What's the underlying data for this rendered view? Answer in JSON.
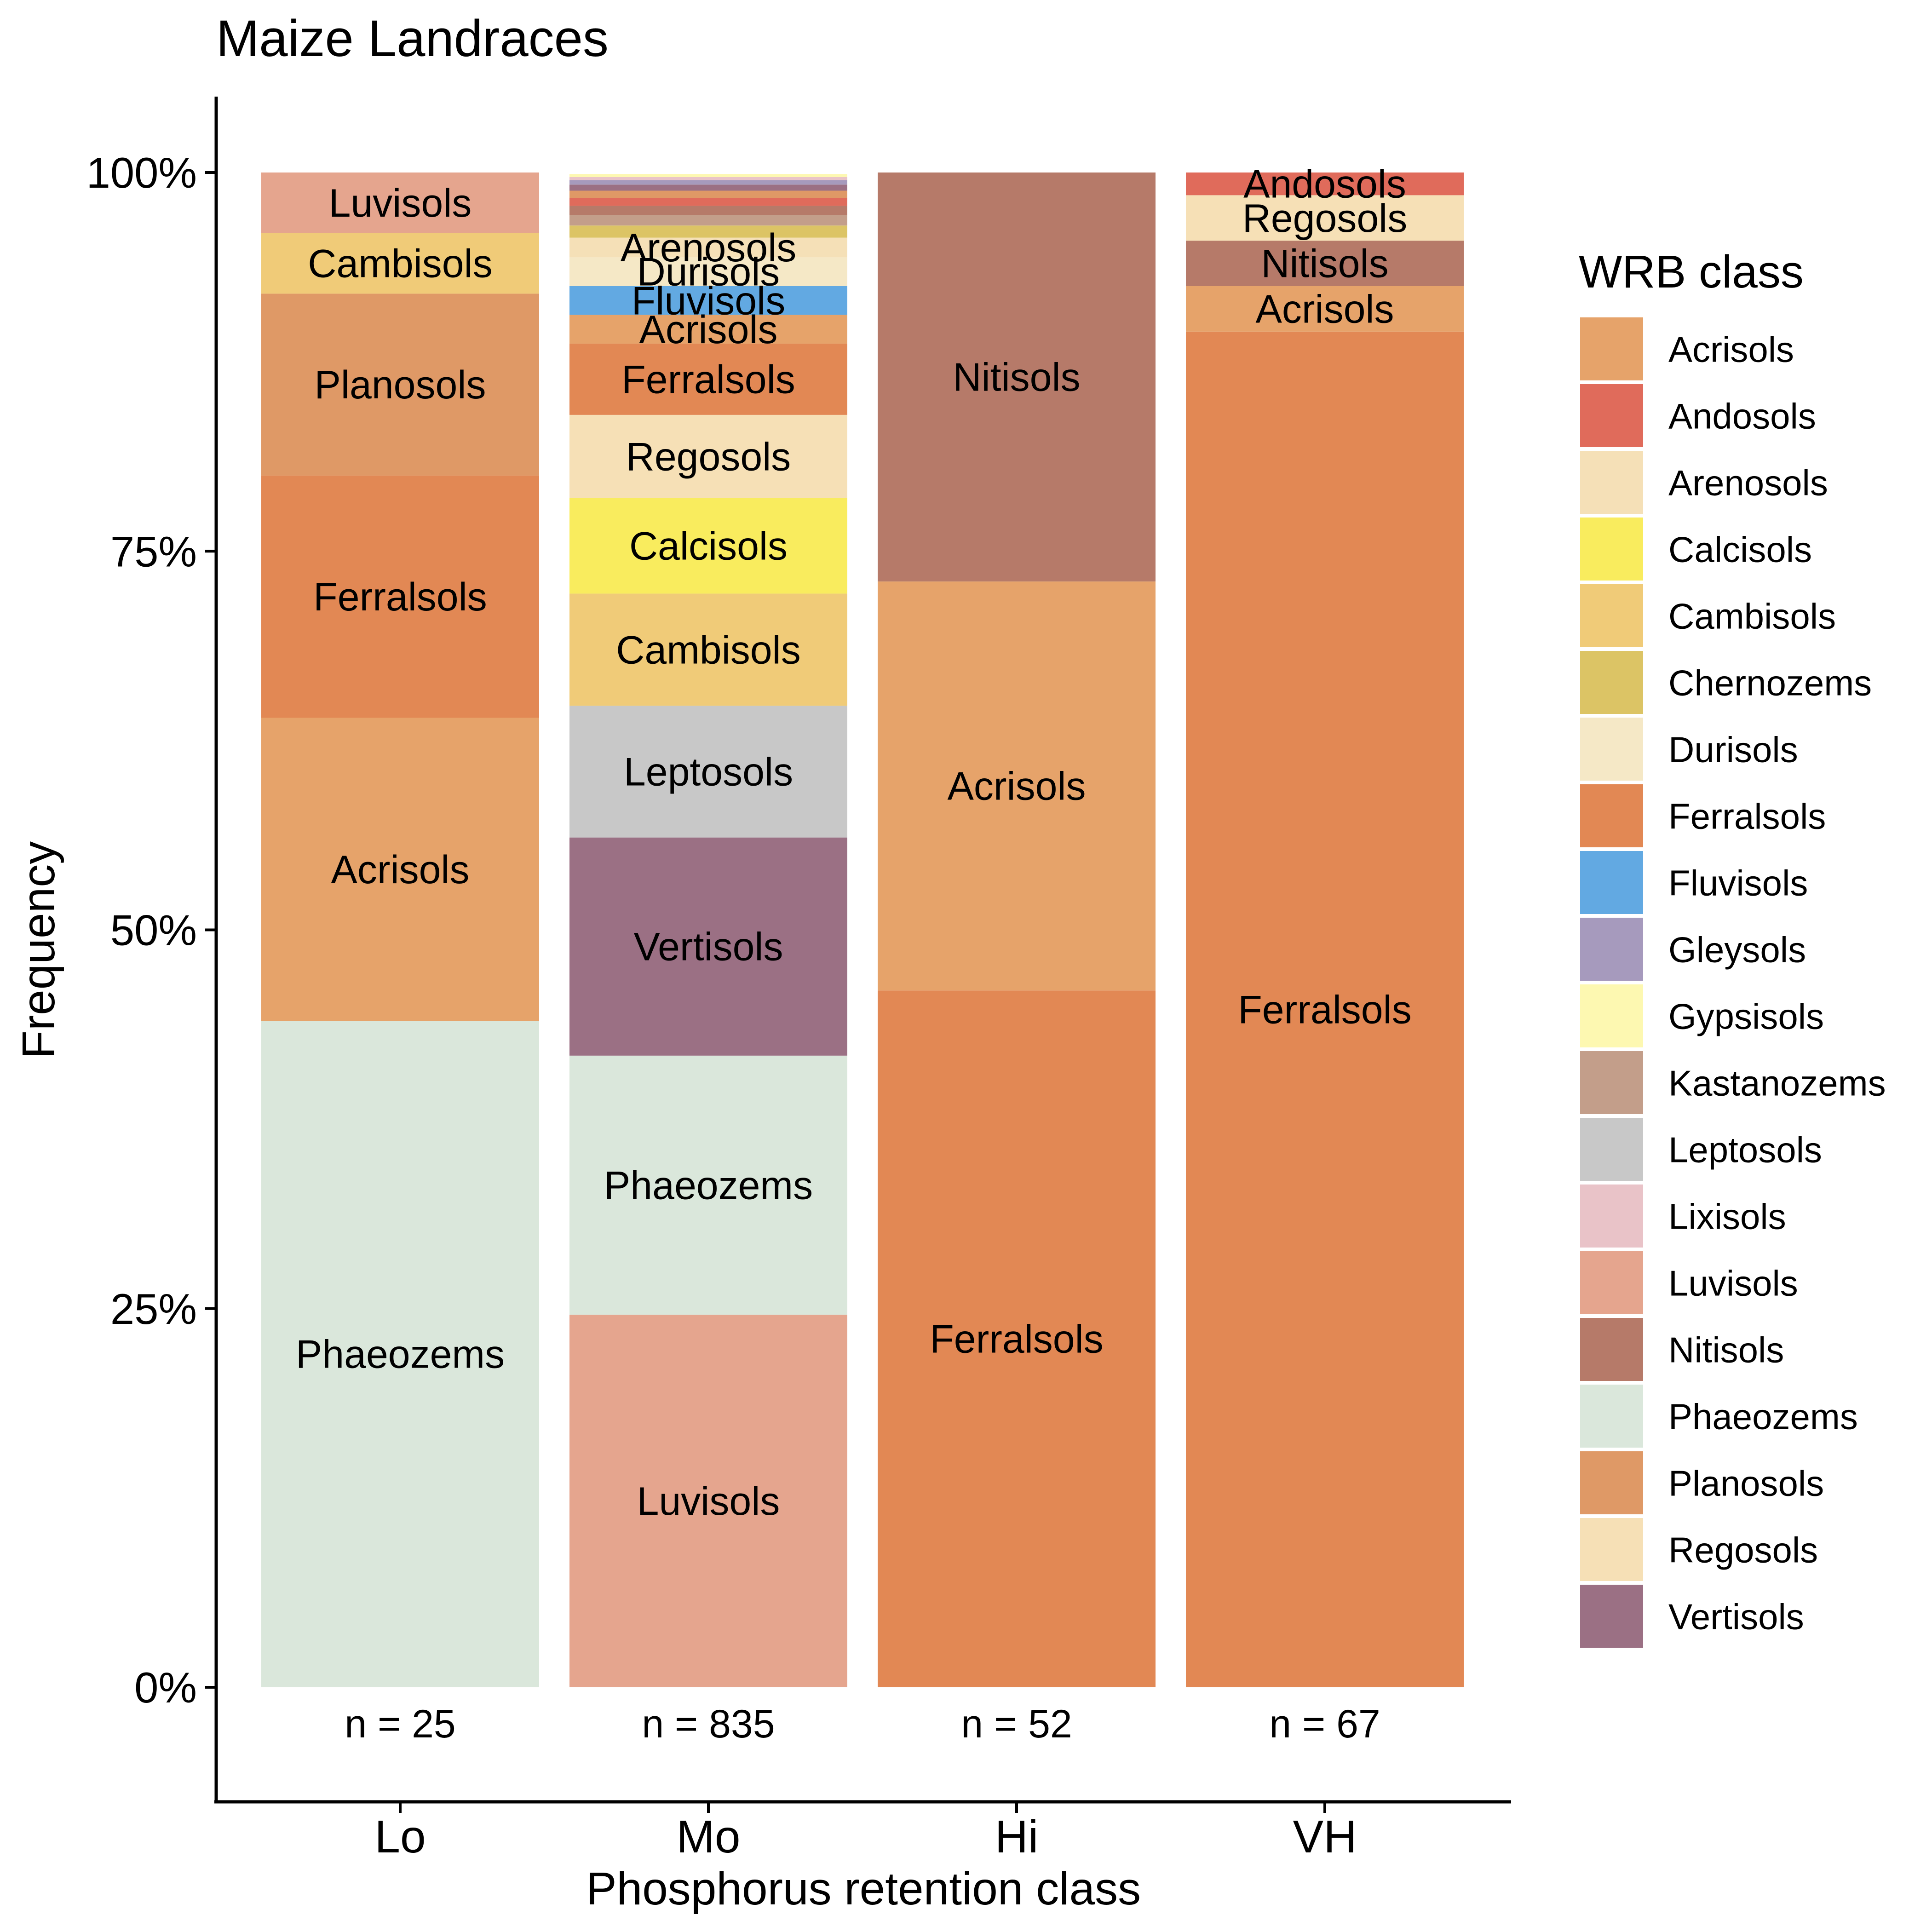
{
  "chart_data": {
    "type": "bar",
    "stacked": true,
    "normalized": true,
    "title": "Maize Landraces",
    "xlabel": "Phosphorus retention class",
    "ylabel": "Frequency",
    "ylim": [
      -0.07,
      1.05
    ],
    "yticks": [
      0,
      0.25,
      0.5,
      0.75,
      1.0
    ],
    "ytick_labels": [
      "0%",
      "25%",
      "50%",
      "75%",
      "100%"
    ],
    "grid": false,
    "legend_title": "WRB class",
    "legend_position": "right",
    "categories": [
      "Lo",
      "Mo",
      "Hi",
      "VH"
    ],
    "counts": [
      "n = 25",
      "n = 835",
      "n = 52",
      "n = 67"
    ],
    "classes": [
      {
        "name": "Acrisols",
        "color": "#E6A36A"
      },
      {
        "name": "Andosols",
        "color": "#E06B5B"
      },
      {
        "name": "Arenosols",
        "color": "#F5E0B7"
      },
      {
        "name": "Calcisols",
        "color": "#F9EC5E"
      },
      {
        "name": "Cambisols",
        "color": "#F0CB78"
      },
      {
        "name": "Chernozems",
        "color": "#DCC465"
      },
      {
        "name": "Durisols",
        "color": "#F5E8C6"
      },
      {
        "name": "Ferralsols",
        "color": "#E28854"
      },
      {
        "name": "Fluvisols",
        "color": "#62A9E2"
      },
      {
        "name": "Gleysols",
        "color": "#A69ABD"
      },
      {
        "name": "Gypsisols",
        "color": "#FDF8B1"
      },
      {
        "name": "Kastanozems",
        "color": "#C39E8A"
      },
      {
        "name": "Leptosols",
        "color": "#C8C8C8"
      },
      {
        "name": "Lixisols",
        "color": "#E9C3C8"
      },
      {
        "name": "Luvisols",
        "color": "#E5A58E"
      },
      {
        "name": "Nitisols",
        "color": "#B67A69"
      },
      {
        "name": "Phaeozems",
        "color": "#DAE7DB"
      },
      {
        "name": "Planosols",
        "color": "#DF9966"
      },
      {
        "name": "Regosols",
        "color": "#F6E0B6"
      },
      {
        "name": "Vertisols",
        "color": "#9B7084"
      }
    ],
    "stacks": [
      {
        "category": "Lo",
        "segments": [
          {
            "class": "Phaeozems",
            "value": 0.44,
            "label": "Phaeozems"
          },
          {
            "class": "Acrisols",
            "value": 0.2,
            "label": "Acrisols"
          },
          {
            "class": "Ferralsols",
            "value": 0.16,
            "label": "Ferralsols"
          },
          {
            "class": "Planosols",
            "value": 0.12,
            "label": "Planosols"
          },
          {
            "class": "Cambisols",
            "value": 0.04,
            "label": "Cambisols"
          },
          {
            "class": "Luvisols",
            "value": 0.04,
            "label": "Luvisols"
          }
        ]
      },
      {
        "category": "Mo",
        "segments": [
          {
            "class": "Luvisols",
            "value": 0.246,
            "label": "Luvisols"
          },
          {
            "class": "Phaeozems",
            "value": 0.171,
            "label": "Phaeozems"
          },
          {
            "class": "Vertisols",
            "value": 0.144,
            "label": "Vertisols"
          },
          {
            "class": "Leptosols",
            "value": 0.087,
            "label": "Leptosols"
          },
          {
            "class": "Cambisols",
            "value": 0.074,
            "label": "Cambisols"
          },
          {
            "class": "Calcisols",
            "value": 0.063,
            "label": "Calcisols"
          },
          {
            "class": "Regosols",
            "value": 0.055,
            "label": "Regosols"
          },
          {
            "class": "Ferralsols",
            "value": 0.047,
            "label": "Ferralsols"
          },
          {
            "class": "Acrisols",
            "value": 0.019,
            "label": "Acrisols"
          },
          {
            "class": "Fluvisols",
            "value": 0.019,
            "label": "Fluvisols"
          },
          {
            "class": "Durisols",
            "value": 0.019,
            "label": "Durisols"
          },
          {
            "class": "Arenosols",
            "value": 0.013,
            "label": "Arenosols"
          },
          {
            "class": "Chernozems",
            "value": 0.008,
            "label": ""
          },
          {
            "class": "Kastanozems",
            "value": 0.007,
            "label": ""
          },
          {
            "class": "Nitisols",
            "value": 0.006,
            "label": ""
          },
          {
            "class": "Andosols",
            "value": 0.005,
            "label": ""
          },
          {
            "class": "Planosols",
            "value": 0.005,
            "label": ""
          },
          {
            "class": "Vertisols",
            "value": 0.004,
            "label": ""
          },
          {
            "class": "Gleysols",
            "value": 0.003,
            "label": ""
          },
          {
            "class": "Lixisols",
            "value": 0.002,
            "label": ""
          },
          {
            "class": "Gypsisols",
            "value": 0.002,
            "label": ""
          }
        ]
      },
      {
        "category": "Hi",
        "segments": [
          {
            "class": "Ferralsols",
            "value": 0.46,
            "label": "Ferralsols"
          },
          {
            "class": "Acrisols",
            "value": 0.27,
            "label": "Acrisols"
          },
          {
            "class": "Nitisols",
            "value": 0.27,
            "label": "Nitisols"
          }
        ]
      },
      {
        "category": "VH",
        "segments": [
          {
            "class": "Ferralsols",
            "value": 0.895,
            "label": "Ferralsols"
          },
          {
            "class": "Acrisols",
            "value": 0.03,
            "label": "Acrisols"
          },
          {
            "class": "Nitisols",
            "value": 0.03,
            "label": "Nitisols"
          },
          {
            "class": "Regosols",
            "value": 0.03,
            "label": "Regosols"
          },
          {
            "class": "Andosols",
            "value": 0.015,
            "label": "Andosols"
          }
        ]
      }
    ]
  }
}
